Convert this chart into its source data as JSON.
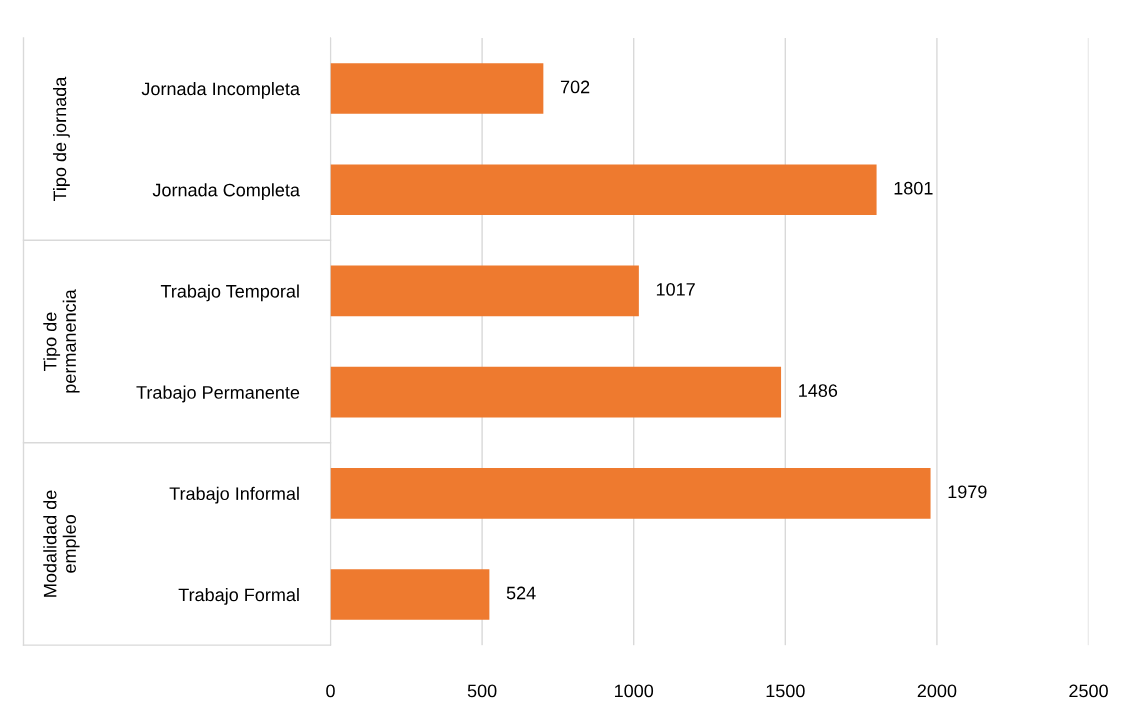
{
  "chart_data": {
    "type": "bar",
    "orientation": "horizontal",
    "categories": [
      "Jornada Incompleta",
      "Jornada Completa",
      "Trabajo Temporal",
      "Trabajo Permanente",
      "Trabajo Informal",
      "Trabajo Formal"
    ],
    "values": [
      702,
      1801,
      1017,
      1486,
      1979,
      524
    ],
    "color": "#ee7a2f",
    "xlim": [
      0,
      2500
    ],
    "xticks": [
      0,
      500,
      1000,
      1500,
      2000,
      2500
    ],
    "grid": "x",
    "data_labels": true,
    "legend": false,
    "annotations": [
      "Tipo de jornada",
      "Tipo de\npermanencia",
      "Modalidad de\nempleo"
    ]
  }
}
